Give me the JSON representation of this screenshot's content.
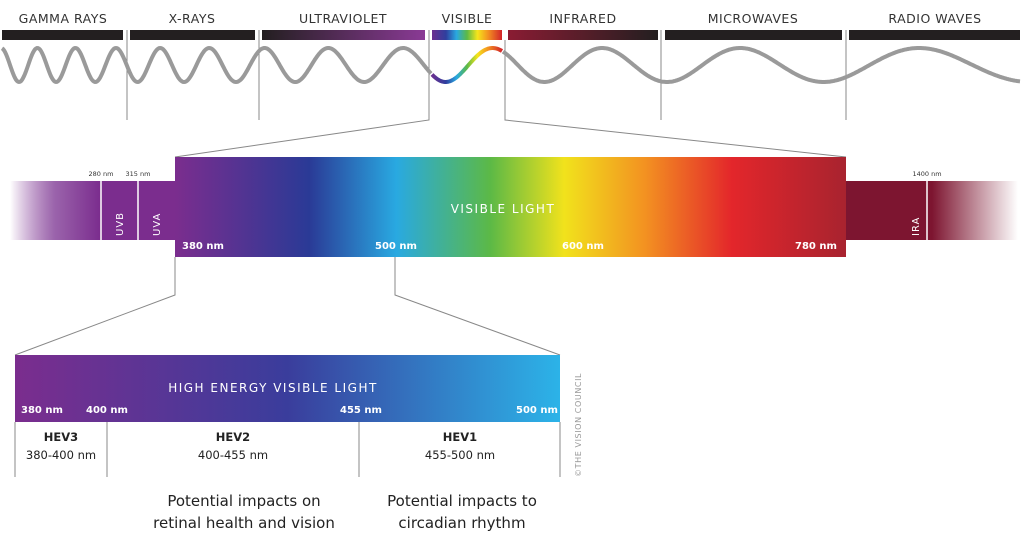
{
  "spectrum_categories": [
    "GAMMA RAYS",
    "X-RAYS",
    "ULTRAVIOLET",
    "VISIBLE",
    "INFRARED",
    "MICROWAVES",
    "RADIO WAVES"
  ],
  "middle_band": {
    "title": "VISIBLE LIGHT",
    "uv_markers": [
      "280 nm",
      "315 nm"
    ],
    "uv_labels": [
      "UVB",
      "UVA"
    ],
    "ir_marker": "1400 nm",
    "ir_label": "IRA",
    "wavelengths": [
      "380 nm",
      "500 nm",
      "600 nm",
      "780 nm"
    ]
  },
  "hev_band": {
    "title": "HIGH ENERGY VISIBLE LIGHT",
    "wavelengths": [
      "380 nm",
      "400 nm",
      "455 nm",
      "500 nm"
    ],
    "segments": [
      {
        "name": "HEV3",
        "range": "380-400 nm"
      },
      {
        "name": "HEV2",
        "range": "400-455 nm"
      },
      {
        "name": "HEV1",
        "range": "455-500 nm"
      }
    ]
  },
  "captions": {
    "retinal": [
      "Potential impacts on",
      "retinal health and vision"
    ],
    "circadian": [
      "Potential impacts to",
      "circadian rhythm"
    ]
  },
  "copyright": "©THE VISION COUNCIL",
  "colors": {
    "wave": "#9a9a9a",
    "bar_dark": "#231f20",
    "ir": "#8a1c33"
  }
}
